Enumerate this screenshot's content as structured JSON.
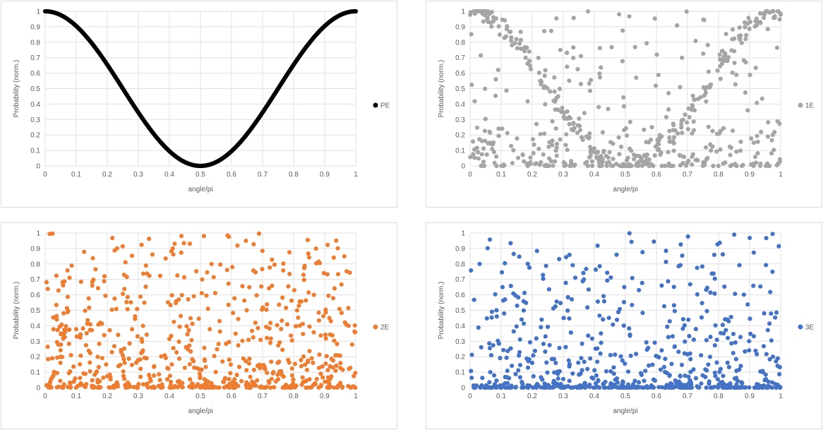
{
  "chart_data": [
    {
      "type": "scatter",
      "xlabel": "angle/pi",
      "ylabel": "Probability (norm.)",
      "xlim": [
        0,
        1
      ],
      "ylim": [
        0,
        1
      ],
      "xticks": [
        "0",
        "0.1",
        "0.2",
        "0.3",
        "0.4",
        "0.5",
        "0.6",
        "0.7",
        "0.8",
        "0.9",
        "1"
      ],
      "yticks": [
        "0",
        "0.1",
        "0.2",
        "0.3",
        "0.4",
        "0.5",
        "0.6",
        "0.7",
        "0.8",
        "0.9",
        "1"
      ],
      "grid": true,
      "legend_position": "right",
      "series": [
        {
          "name": "PE",
          "color": "#000000",
          "function": "cos2",
          "count": 400
        }
      ]
    },
    {
      "type": "scatter",
      "xlabel": "angle/pi",
      "ylabel": "Probability (norm.)",
      "xlim": [
        0,
        1
      ],
      "ylim": [
        0,
        1
      ],
      "xticks": [
        "0",
        "0.1",
        "0.2",
        "0.3",
        "0.4",
        "0.5",
        "0.6",
        "0.7",
        "0.8",
        "0.9",
        "1"
      ],
      "yticks": [
        "0",
        "0.1",
        "0.2",
        "0.3",
        "0.4",
        "0.5",
        "0.6",
        "0.7",
        "0.8",
        "0.9",
        "1"
      ],
      "grid": true,
      "legend_position": "right",
      "series": [
        {
          "name": "1E",
          "color": "#a5a5a5",
          "seed": 11,
          "count": 620,
          "distribution": "v-shape"
        }
      ]
    },
    {
      "type": "scatter",
      "xlabel": "angle/pi",
      "ylabel": "Probability (norm.)",
      "xlim": [
        0,
        1
      ],
      "ylim": [
        0,
        1
      ],
      "xticks": [
        "0",
        "0.1",
        "0.2",
        "0.3",
        "0.4",
        "0.5",
        "0.6",
        "0.7",
        "0.8",
        "0.9",
        "1"
      ],
      "yticks": [
        "0",
        "0.1",
        "0.2",
        "0.3",
        "0.4",
        "0.5",
        "0.6",
        "0.7",
        "0.8",
        "0.9",
        "1"
      ],
      "grid": true,
      "legend_position": "right",
      "series": [
        {
          "name": "2E",
          "color": "#ed7d31",
          "seed": 23,
          "count": 700,
          "distribution": "low-skew"
        }
      ]
    },
    {
      "type": "scatter",
      "xlabel": "angle/pi",
      "ylabel": "Probability (norm.)",
      "xlim": [
        0,
        1
      ],
      "ylim": [
        0,
        1
      ],
      "xticks": [
        "0",
        "0.1",
        "0.2",
        "0.3",
        "0.4",
        "0.5",
        "0.6",
        "0.7",
        "0.8",
        "0.9",
        "1"
      ],
      "yticks": [
        "0",
        "0.1",
        "0.2",
        "0.3",
        "0.4",
        "0.5",
        "0.6",
        "0.7",
        "0.8",
        "0.9",
        "1"
      ],
      "grid": true,
      "legend_position": "right",
      "series": [
        {
          "name": "3E",
          "color": "#4472c4",
          "seed": 37,
          "count": 650,
          "distribution": "strong-low-skew"
        }
      ]
    }
  ]
}
